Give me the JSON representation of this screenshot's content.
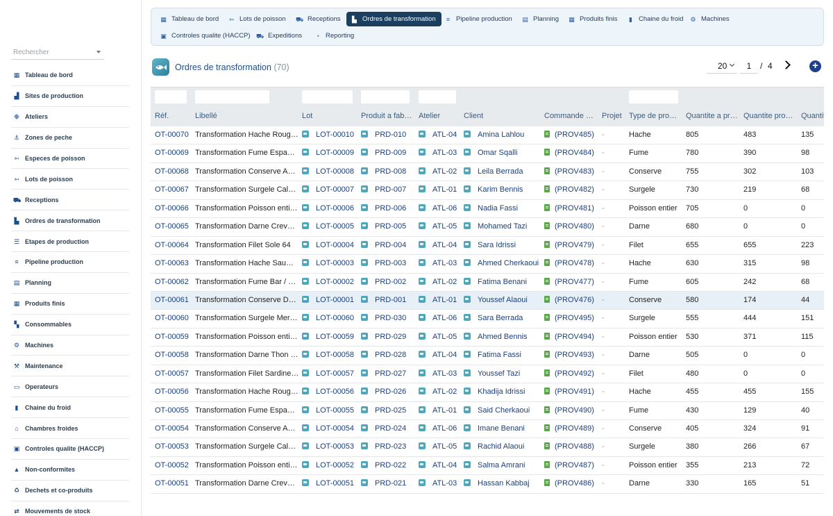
{
  "sidebar": {
    "search_placeholder": "Rechercher",
    "items": [
      {
        "label": "Tableau de bord",
        "icon": "dashboard-icon"
      },
      {
        "label": "Sites de production",
        "icon": "factory-icon"
      },
      {
        "label": "Ateliers",
        "icon": "network-icon"
      },
      {
        "label": "Zones de peche",
        "icon": "anchor-icon"
      },
      {
        "label": "Especes de poisson",
        "icon": "fish-icon"
      },
      {
        "label": "Lots de poisson",
        "icon": "fish-icon"
      },
      {
        "label": "Receptions",
        "icon": "truck-loading-icon"
      },
      {
        "label": "Ordres de transformation",
        "icon": "industry-icon"
      },
      {
        "label": "Etapes de production",
        "icon": "list-icon"
      },
      {
        "label": "Pipeline production",
        "icon": "pipeline-icon"
      },
      {
        "label": "Planning",
        "icon": "calendar-icon"
      },
      {
        "label": "Produits finis",
        "icon": "grid-icon"
      },
      {
        "label": "Consommables",
        "icon": "boxes-icon"
      },
      {
        "label": "Machines",
        "icon": "gears-icon"
      },
      {
        "label": "Maintenance",
        "icon": "wrench-icon"
      },
      {
        "label": "Operateurs",
        "icon": "id-card-icon"
      },
      {
        "label": "Chaine du froid",
        "icon": "thermometer-icon"
      },
      {
        "label": "Chambres froides",
        "icon": "warehouse-icon"
      },
      {
        "label": "Controles qualite (HACCP)",
        "icon": "clipboard-check-icon"
      },
      {
        "label": "Non-conformites",
        "icon": "warning-icon"
      },
      {
        "label": "Dechets et co-produits",
        "icon": "recycle-icon"
      },
      {
        "label": "Mouvements de stock",
        "icon": "exchange-icon"
      }
    ]
  },
  "tabs": [
    {
      "label": "Tableau de bord",
      "icon": "dashboard-icon",
      "active": false
    },
    {
      "label": "Lots de poisson",
      "icon": "fish-icon",
      "active": false
    },
    {
      "label": "Receptions",
      "icon": "truck-loading-icon",
      "active": false
    },
    {
      "label": "Ordres de transformation",
      "icon": "industry-icon",
      "active": true
    },
    {
      "label": "Pipeline production",
      "icon": "pipeline-icon",
      "active": false
    },
    {
      "label": "Planning",
      "icon": "calendar-icon",
      "active": false
    },
    {
      "label": "Produits finis",
      "icon": "grid-icon",
      "active": false
    },
    {
      "label": "Chaine du froid",
      "icon": "thermometer-icon",
      "active": false
    },
    {
      "label": "Machines",
      "icon": "gears-icon",
      "active": false
    },
    {
      "label": "Controles qualite (HACCP)",
      "icon": "clipboard-check-icon",
      "active": false
    },
    {
      "label": "Expeditions",
      "icon": "truck-icon",
      "active": false
    },
    {
      "label": "Reporting",
      "icon": "pie-chart-icon",
      "active": false
    }
  ],
  "header": {
    "title": "Ordres de transformation",
    "count": "(70)",
    "page_size": "20",
    "page": "1",
    "page_sep": "/",
    "total_pages": "4",
    "add_label": "+"
  },
  "columns": [
    "Réf.",
    "Libellé",
    "Lot",
    "Produit a fab…",
    "Atelier",
    "Client",
    "Commande …",
    "Projet",
    "Type de pro…",
    "Quantite a pr…",
    "Quantite pro…",
    "Quantit"
  ],
  "rows": [
    {
      "ref": "OT-00070",
      "libelle": "Transformation Hache Roug…",
      "lot": "LOT-00010",
      "produit": "PRD-010",
      "atelier": "ATL-04",
      "client": "Amina Lahlou",
      "commande": "(PROV485)",
      "projet": "-",
      "type": "Hache",
      "q1": "805",
      "q2": "483",
      "q3": "135"
    },
    {
      "ref": "OT-00069",
      "libelle": "Transformation Fume Espa…",
      "lot": "LOT-00009",
      "produit": "PRD-009",
      "atelier": "ATL-03",
      "client": "Omar Sqalli",
      "commande": "(PROV484)",
      "projet": "-",
      "type": "Fume",
      "q1": "780",
      "q2": "390",
      "q3": "98"
    },
    {
      "ref": "OT-00068",
      "libelle": "Transformation Conserve A…",
      "lot": "LOT-00008",
      "produit": "PRD-008",
      "atelier": "ATL-02",
      "client": "Leila Berrada",
      "commande": "(PROV483)",
      "projet": "-",
      "type": "Conserve",
      "q1": "755",
      "q2": "302",
      "q3": "103"
    },
    {
      "ref": "OT-00067",
      "libelle": "Transformation Surgele Cal…",
      "lot": "LOT-00007",
      "produit": "PRD-007",
      "atelier": "ATL-01",
      "client": "Karim Bennis",
      "commande": "(PROV482)",
      "projet": "-",
      "type": "Surgele",
      "q1": "730",
      "q2": "219",
      "q3": "68"
    },
    {
      "ref": "OT-00066",
      "libelle": "Transformation Poisson enti…",
      "lot": "LOT-00006",
      "produit": "PRD-006",
      "atelier": "ATL-06",
      "client": "Nadia Fassi",
      "commande": "(PROV481)",
      "projet": "-",
      "type": "Poisson entier",
      "q1": "705",
      "q2": "0",
      "q3": "0"
    },
    {
      "ref": "OT-00065",
      "libelle": "Transformation Darne Crev…",
      "lot": "LOT-00005",
      "produit": "PRD-005",
      "atelier": "ATL-05",
      "client": "Mohamed Tazi",
      "commande": "(PROV480)",
      "projet": "-",
      "type": "Darne",
      "q1": "680",
      "q2": "0",
      "q3": "0"
    },
    {
      "ref": "OT-00064",
      "libelle": "Transformation Filet Sole 64",
      "lot": "LOT-00004",
      "produit": "PRD-004",
      "atelier": "ATL-04",
      "client": "Sara Idrissi",
      "commande": "(PROV479)",
      "projet": "-",
      "type": "Filet",
      "q1": "655",
      "q2": "655",
      "q3": "223"
    },
    {
      "ref": "OT-00063",
      "libelle": "Transformation Hache Sau…",
      "lot": "LOT-00003",
      "produit": "PRD-003",
      "atelier": "ATL-03",
      "client": "Ahmed Cherkaoui",
      "commande": "(PROV478)",
      "projet": "-",
      "type": "Hache",
      "q1": "630",
      "q2": "315",
      "q3": "98"
    },
    {
      "ref": "OT-00062",
      "libelle": "Transformation Fume Bar / …",
      "lot": "LOT-00002",
      "produit": "PRD-002",
      "atelier": "ATL-02",
      "client": "Fatima Benani",
      "commande": "(PROV477)",
      "projet": "-",
      "type": "Fume",
      "q1": "605",
      "q2": "242",
      "q3": "68"
    },
    {
      "ref": "OT-00061",
      "libelle": "Transformation Conserve D…",
      "lot": "LOT-00001",
      "produit": "PRD-001",
      "atelier": "ATL-01",
      "client": "Youssef Alaoui",
      "commande": "(PROV476)",
      "projet": "-",
      "type": "Conserve",
      "q1": "580",
      "q2": "174",
      "q3": "44",
      "hl": true
    },
    {
      "ref": "OT-00060",
      "libelle": "Transformation Surgele Mer…",
      "lot": "LOT-00060",
      "produit": "PRD-030",
      "atelier": "ATL-06",
      "client": "Sara Berrada",
      "commande": "(PROV495)",
      "projet": "-",
      "type": "Surgele",
      "q1": "555",
      "q2": "444",
      "q3": "151"
    },
    {
      "ref": "OT-00059",
      "libelle": "Transformation Poisson enti…",
      "lot": "LOT-00059",
      "produit": "PRD-029",
      "atelier": "ATL-05",
      "client": "Ahmed Bennis",
      "commande": "(PROV494)",
      "projet": "-",
      "type": "Poisson entier",
      "q1": "530",
      "q2": "371",
      "q3": "115"
    },
    {
      "ref": "OT-00058",
      "libelle": "Transformation Darne Thon …",
      "lot": "LOT-00058",
      "produit": "PRD-028",
      "atelier": "ATL-04",
      "client": "Fatima Fassi",
      "commande": "(PROV493)",
      "projet": "-",
      "type": "Darne",
      "q1": "505",
      "q2": "0",
      "q3": "0"
    },
    {
      "ref": "OT-00057",
      "libelle": "Transformation Filet Sardine…",
      "lot": "LOT-00057",
      "produit": "PRD-027",
      "atelier": "ATL-03",
      "client": "Youssef Tazi",
      "commande": "(PROV492)",
      "projet": "-",
      "type": "Filet",
      "q1": "480",
      "q2": "0",
      "q3": "0"
    },
    {
      "ref": "OT-00056",
      "libelle": "Transformation Hache Roug…",
      "lot": "LOT-00056",
      "produit": "PRD-026",
      "atelier": "ATL-02",
      "client": "Khadija Idrissi",
      "commande": "(PROV491)",
      "projet": "-",
      "type": "Hache",
      "q1": "455",
      "q2": "455",
      "q3": "155"
    },
    {
      "ref": "OT-00055",
      "libelle": "Transformation Fume Espa…",
      "lot": "LOT-00055",
      "produit": "PRD-025",
      "atelier": "ATL-01",
      "client": "Said Cherkaoui",
      "commande": "(PROV490)",
      "projet": "-",
      "type": "Fume",
      "q1": "430",
      "q2": "129",
      "q3": "40"
    },
    {
      "ref": "OT-00054",
      "libelle": "Transformation Conserve A…",
      "lot": "LOT-00054",
      "produit": "PRD-024",
      "atelier": "ATL-06",
      "client": "Imane Benani",
      "commande": "(PROV489)",
      "projet": "-",
      "type": "Conserve",
      "q1": "405",
      "q2": "324",
      "q3": "91"
    },
    {
      "ref": "OT-00053",
      "libelle": "Transformation Surgele Cal…",
      "lot": "LOT-00053",
      "produit": "PRD-023",
      "atelier": "ATL-05",
      "client": "Rachid Alaoui",
      "commande": "(PROV488)",
      "projet": "-",
      "type": "Surgele",
      "q1": "380",
      "q2": "266",
      "q3": "67"
    },
    {
      "ref": "OT-00052",
      "libelle": "Transformation Poisson enti…",
      "lot": "LOT-00052",
      "produit": "PRD-022",
      "atelier": "ATL-04",
      "client": "Salma Amrani",
      "commande": "(PROV487)",
      "projet": "-",
      "type": "Poisson entier",
      "q1": "355",
      "q2": "213",
      "q3": "72"
    },
    {
      "ref": "OT-00051",
      "libelle": "Transformation Darne Crev…",
      "lot": "LOT-00051",
      "produit": "PRD-021",
      "atelier": "ATL-03",
      "client": "Hassan Kabbaj",
      "commande": "(PROV486)",
      "projet": "-",
      "type": "Darne",
      "q1": "330",
      "q2": "165",
      "q3": "51"
    }
  ]
}
